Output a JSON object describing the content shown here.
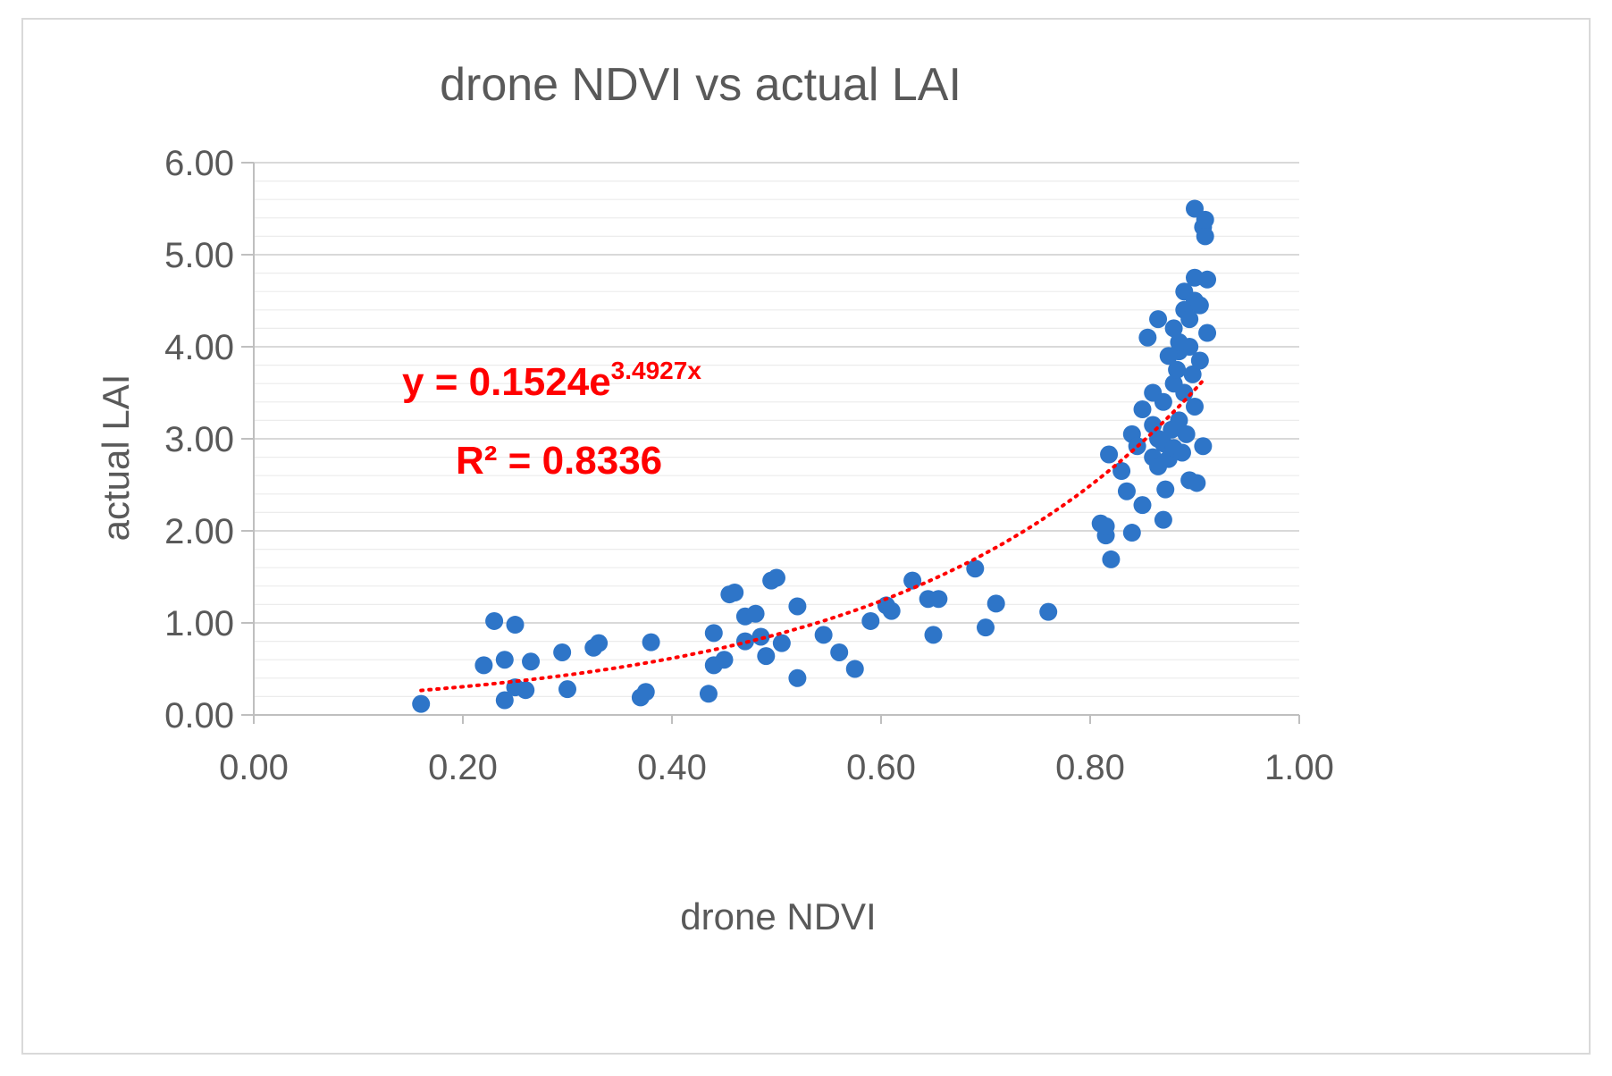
{
  "chart_data": {
    "type": "scatter",
    "title": "drone NDVI vs actual LAI",
    "xlabel": "drone NDVI",
    "ylabel": "actual LAI",
    "xlim": [
      0,
      1
    ],
    "ylim": [
      0,
      6
    ],
    "xticks": [
      "0.00",
      "0.20",
      "0.40",
      "0.60",
      "0.80",
      "1.00"
    ],
    "yticks": [
      "0.00",
      "1.00",
      "2.00",
      "3.00",
      "4.00",
      "5.00",
      "6.00"
    ],
    "grid": true,
    "marker_color": "#2e75c8",
    "trendline": {
      "type": "exponential",
      "a": 0.1524,
      "b": 3.4927,
      "x_range": [
        0.16,
        0.91
      ],
      "color": "#ff0000",
      "style": "dotted",
      "equation_prefix": "y = 0.1524e",
      "equation_exponent": "3.4927x",
      "r2_label": "R² = 0.8336"
    },
    "series": [
      {
        "name": "LAI",
        "points": [
          [
            0.16,
            0.12
          ],
          [
            0.22,
            0.54
          ],
          [
            0.23,
            1.02
          ],
          [
            0.24,
            0.6
          ],
          [
            0.24,
            0.16
          ],
          [
            0.25,
            0.98
          ],
          [
            0.25,
            0.3
          ],
          [
            0.26,
            0.27
          ],
          [
            0.265,
            0.58
          ],
          [
            0.295,
            0.68
          ],
          [
            0.3,
            0.28
          ],
          [
            0.325,
            0.73
          ],
          [
            0.33,
            0.78
          ],
          [
            0.37,
            0.19
          ],
          [
            0.375,
            0.25
          ],
          [
            0.38,
            0.79
          ],
          [
            0.435,
            0.23
          ],
          [
            0.44,
            0.89
          ],
          [
            0.44,
            0.54
          ],
          [
            0.45,
            0.6
          ],
          [
            0.455,
            1.31
          ],
          [
            0.46,
            1.33
          ],
          [
            0.47,
            1.07
          ],
          [
            0.47,
            0.8
          ],
          [
            0.48,
            1.1
          ],
          [
            0.485,
            0.85
          ],
          [
            0.49,
            0.64
          ],
          [
            0.495,
            1.46
          ],
          [
            0.5,
            1.49
          ],
          [
            0.505,
            0.78
          ],
          [
            0.52,
            1.18
          ],
          [
            0.52,
            0.4
          ],
          [
            0.545,
            0.87
          ],
          [
            0.56,
            0.68
          ],
          [
            0.575,
            0.5
          ],
          [
            0.59,
            1.02
          ],
          [
            0.605,
            1.19
          ],
          [
            0.61,
            1.13
          ],
          [
            0.63,
            1.46
          ],
          [
            0.645,
            1.26
          ],
          [
            0.65,
            0.87
          ],
          [
            0.655,
            1.26
          ],
          [
            0.69,
            1.59
          ],
          [
            0.7,
            0.95
          ],
          [
            0.71,
            1.21
          ],
          [
            0.76,
            1.12
          ],
          [
            0.81,
            2.08
          ],
          [
            0.815,
            1.95
          ],
          [
            0.815,
            2.05
          ],
          [
            0.818,
            2.83
          ],
          [
            0.82,
            1.69
          ],
          [
            0.83,
            2.65
          ],
          [
            0.835,
            2.43
          ],
          [
            0.84,
            1.98
          ],
          [
            0.84,
            3.05
          ],
          [
            0.845,
            2.92
          ],
          [
            0.85,
            3.32
          ],
          [
            0.85,
            2.28
          ],
          [
            0.855,
            4.1
          ],
          [
            0.86,
            3.5
          ],
          [
            0.86,
            2.8
          ],
          [
            0.865,
            4.3
          ],
          [
            0.865,
            3.0
          ],
          [
            0.87,
            2.95
          ],
          [
            0.87,
            2.12
          ],
          [
            0.87,
            3.4
          ],
          [
            0.872,
            2.45
          ],
          [
            0.875,
            2.78
          ],
          [
            0.878,
            3.1
          ],
          [
            0.88,
            3.6
          ],
          [
            0.88,
            4.2
          ],
          [
            0.88,
            2.9
          ],
          [
            0.883,
            3.75
          ],
          [
            0.885,
            3.2
          ],
          [
            0.885,
            3.95
          ],
          [
            0.888,
            2.85
          ],
          [
            0.89,
            4.4
          ],
          [
            0.89,
            4.6
          ],
          [
            0.89,
            3.5
          ],
          [
            0.892,
            3.05
          ],
          [
            0.895,
            4.0
          ],
          [
            0.895,
            2.55
          ],
          [
            0.898,
            3.7
          ],
          [
            0.9,
            5.5
          ],
          [
            0.9,
            4.75
          ],
          [
            0.9,
            4.5
          ],
          [
            0.9,
            3.35
          ],
          [
            0.902,
            2.52
          ],
          [
            0.905,
            4.45
          ],
          [
            0.905,
            3.85
          ],
          [
            0.908,
            2.92
          ],
          [
            0.908,
            5.3
          ],
          [
            0.91,
            5.2
          ],
          [
            0.91,
            5.38
          ],
          [
            0.912,
            4.73
          ],
          [
            0.912,
            4.15
          ],
          [
            0.875,
            3.9
          ],
          [
            0.885,
            4.05
          ],
          [
            0.895,
            4.3
          ],
          [
            0.865,
            2.7
          ],
          [
            0.86,
            3.15
          ]
        ]
      }
    ]
  }
}
